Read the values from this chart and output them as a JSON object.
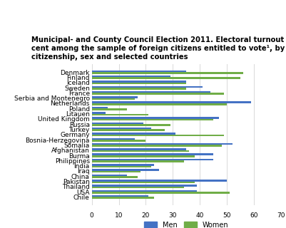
{
  "title": "Municipal- and County Council Election 2011. Electoral turnout in per\ncent among the sample of foreign citizens entitled to vote¹, by\ncitizenship, sex and selected countries",
  "countries": [
    "Denmark",
    "Finland",
    "Iceland",
    "Sweden",
    "France",
    "Serbia and Montenegro",
    "Netherlands",
    "Poland",
    "Litauen",
    "United Kingdom",
    "Russia",
    "Turkey",
    "Germany",
    "Bosnia-Herzegovina",
    "Somalia",
    "Afghanistan",
    "Burma",
    "Philippines",
    "India",
    "Iraq",
    "China",
    "Pakistan",
    "Thailand",
    "USA",
    "Chile"
  ],
  "men": [
    35,
    29,
    35,
    41,
    44,
    17,
    59,
    6,
    5,
    47,
    19,
    22,
    31,
    16,
    52,
    35,
    45,
    45,
    23,
    25,
    13,
    50,
    39,
    39,
    21
  ],
  "women": [
    56,
    55,
    35,
    35,
    49,
    16,
    50,
    13,
    21,
    45,
    29,
    27,
    49,
    20,
    48,
    36,
    38,
    34,
    22,
    18,
    17,
    38,
    34,
    51,
    23
  ],
  "men_color": "#4472C4",
  "women_color": "#70AD47",
  "plot_bg": "#FFFFFF",
  "fig_bg": "#FFFFFF",
  "grid_color": "#D9D9D9",
  "xlim": [
    0,
    70
  ],
  "xticks": [
    0,
    10,
    20,
    30,
    40,
    50,
    60,
    70
  ],
  "legend_labels": [
    "Men",
    "Women"
  ],
  "title_fontsize": 7.2,
  "tick_fontsize": 6.5,
  "bar_height": 0.35
}
